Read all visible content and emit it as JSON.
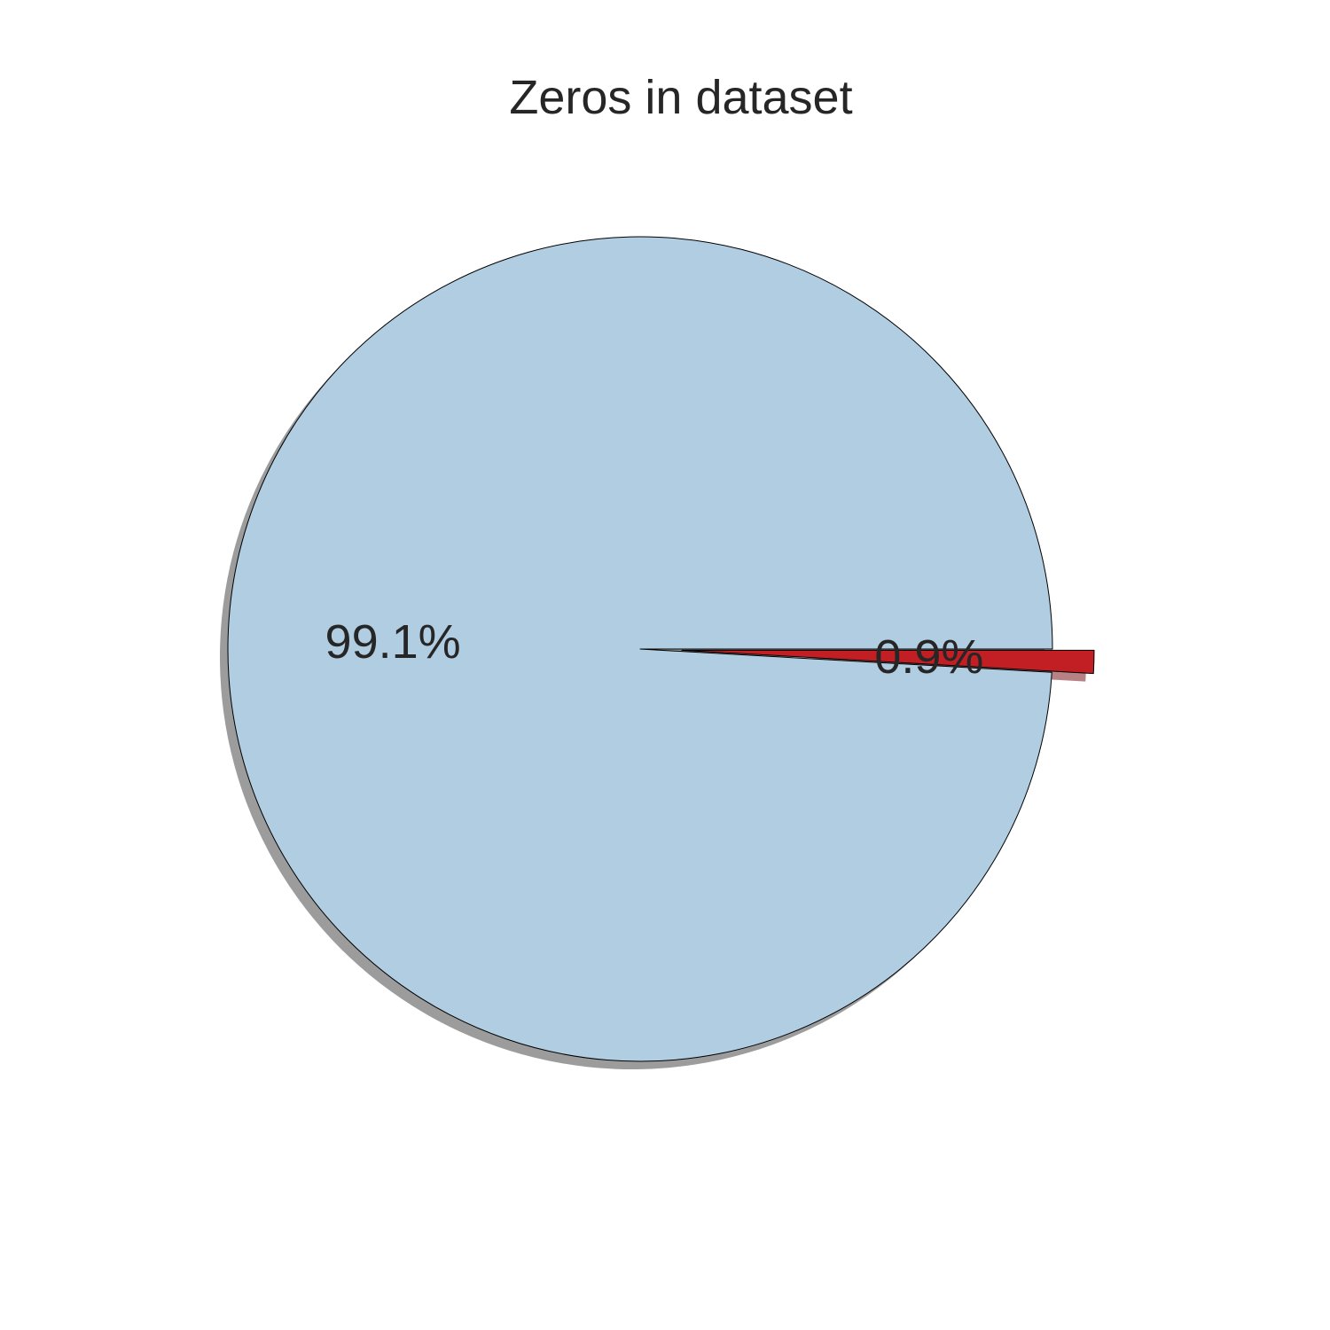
{
  "chart_data": {
    "type": "pie",
    "title": "Zeros in dataset",
    "slices": [
      {
        "label_text": "99.1%",
        "value": 99.1,
        "color": "#b1cde2",
        "explode": false
      },
      {
        "label_text": "0.9%",
        "value": 0.9,
        "color": "#c21f24",
        "explode": true
      }
    ],
    "start_angle_deg": 0,
    "direction": "counterclockwise",
    "shadow": true,
    "edge_color": "#000000"
  }
}
